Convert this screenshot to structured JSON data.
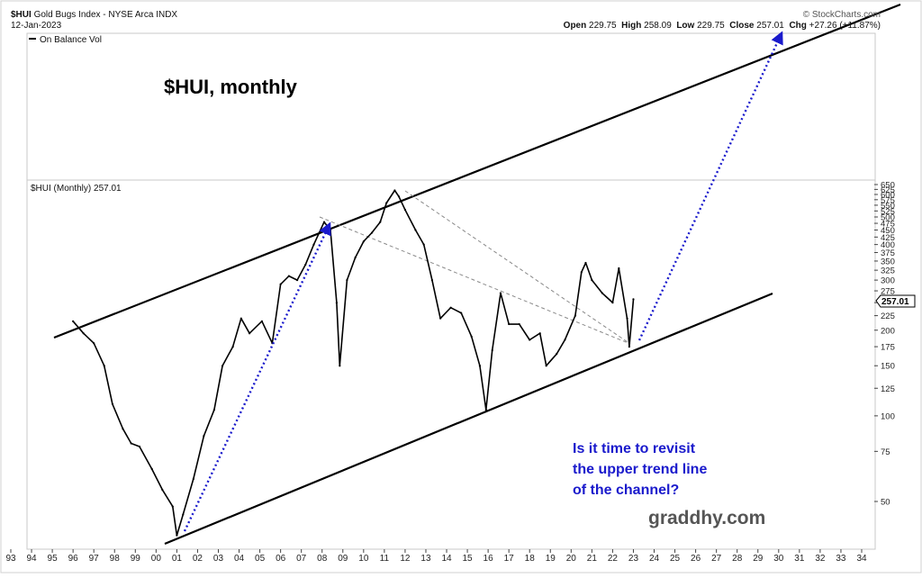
{
  "header": {
    "symbol": "$HUI",
    "name": "Gold Bugs Index - NYSE Arca",
    "exchange": "INDX",
    "date": "12-Jan-2023",
    "credit": "© StockCharts.com",
    "ohlc": {
      "open_label": "Open",
      "open": "229.75",
      "high_label": "High",
      "high": "258.09",
      "low_label": "Low",
      "low": "229.75",
      "close_label": "Close",
      "close": "257.01",
      "chg_label": "Chg",
      "chg": "+27.26 (+11.87%)"
    }
  },
  "indicator_panel": {
    "legend": "On Balance Vol"
  },
  "annotations": {
    "title": "$HUI, monthly",
    "question_lines": [
      "Is it time to revisit",
      "the upper trend line",
      "of the channel?"
    ],
    "watermark": "graddhy.com"
  },
  "colors": {
    "price": "#000000",
    "trendline": "#000000",
    "projection": "#1a1acc",
    "question_text": "#1a1acc",
    "dashed": "#8a8a8a",
    "watermark": "#555555"
  },
  "chart_data": {
    "type": "line",
    "title": "$HUI (Monthly) 257.01",
    "last_price": "257.01",
    "yscale": "log",
    "ylim": [
      36,
      680
    ],
    "xlim": [
      1993,
      2035
    ],
    "y_ticks": [
      "650",
      "625",
      "600",
      "575",
      "550",
      "525",
      "500",
      "475",
      "450",
      "425",
      "400",
      "375",
      "350",
      "325",
      "300",
      "275",
      "250",
      "225",
      "200",
      "175",
      "150",
      "125",
      "100",
      "75",
      "50"
    ],
    "x_ticks": [
      "93",
      "94",
      "95",
      "96",
      "97",
      "98",
      "99",
      "00",
      "01",
      "02",
      "03",
      "04",
      "05",
      "06",
      "07",
      "08",
      "09",
      "10",
      "11",
      "12",
      "13",
      "14",
      "15",
      "16",
      "17",
      "18",
      "19",
      "20",
      "21",
      "22",
      "23",
      "24",
      "25",
      "26",
      "27",
      "28",
      "29",
      "30",
      "31",
      "32",
      "33",
      "34"
    ],
    "series": [
      {
        "x": [
          1996.0,
          1996.5,
          1997.0,
          1997.5,
          1997.9,
          1998.4,
          1998.8,
          1999.2,
          1999.8,
          2000.3,
          2000.8,
          2001.0,
          2001.3,
          2001.8,
          2002.3,
          2002.8,
          2003.2,
          2003.7,
          2004.1,
          2004.5,
          2005.1,
          2005.6,
          2006.0,
          2006.4,
          2006.8,
          2007.2,
          2007.6,
          2008.1,
          2008.4,
          2008.7,
          2008.85,
          2009.2,
          2009.6,
          2010.0,
          2010.4,
          2010.8,
          2011.1,
          2011.5,
          2011.7,
          2012.0,
          2012.5,
          2012.9,
          2013.3,
          2013.7,
          2014.2,
          2014.7,
          2015.2,
          2015.6,
          2015.9,
          2016.2,
          2016.6,
          2017.0,
          2017.5,
          2018.0,
          2018.5,
          2018.8,
          2019.3,
          2019.7,
          2020.2,
          2020.5,
          2020.7,
          2021.0,
          2021.5,
          2022.0,
          2022.3,
          2022.7,
          2022.8,
          2023.0
        ],
        "y": [
          215,
          195,
          180,
          150,
          110,
          90,
          80,
          78,
          65,
          55,
          48,
          38,
          45,
          60,
          85,
          105,
          150,
          175,
          220,
          195,
          215,
          180,
          290,
          310,
          300,
          340,
          400,
          480,
          450,
          250,
          150,
          300,
          360,
          410,
          440,
          480,
          560,
          620,
          590,
          530,
          450,
          400,
          300,
          220,
          240,
          230,
          190,
          150,
          105,
          170,
          270,
          210,
          210,
          185,
          195,
          150,
          165,
          185,
          225,
          320,
          345,
          300,
          270,
          250,
          330,
          220,
          175,
          257
        ]
      }
    ]
  }
}
